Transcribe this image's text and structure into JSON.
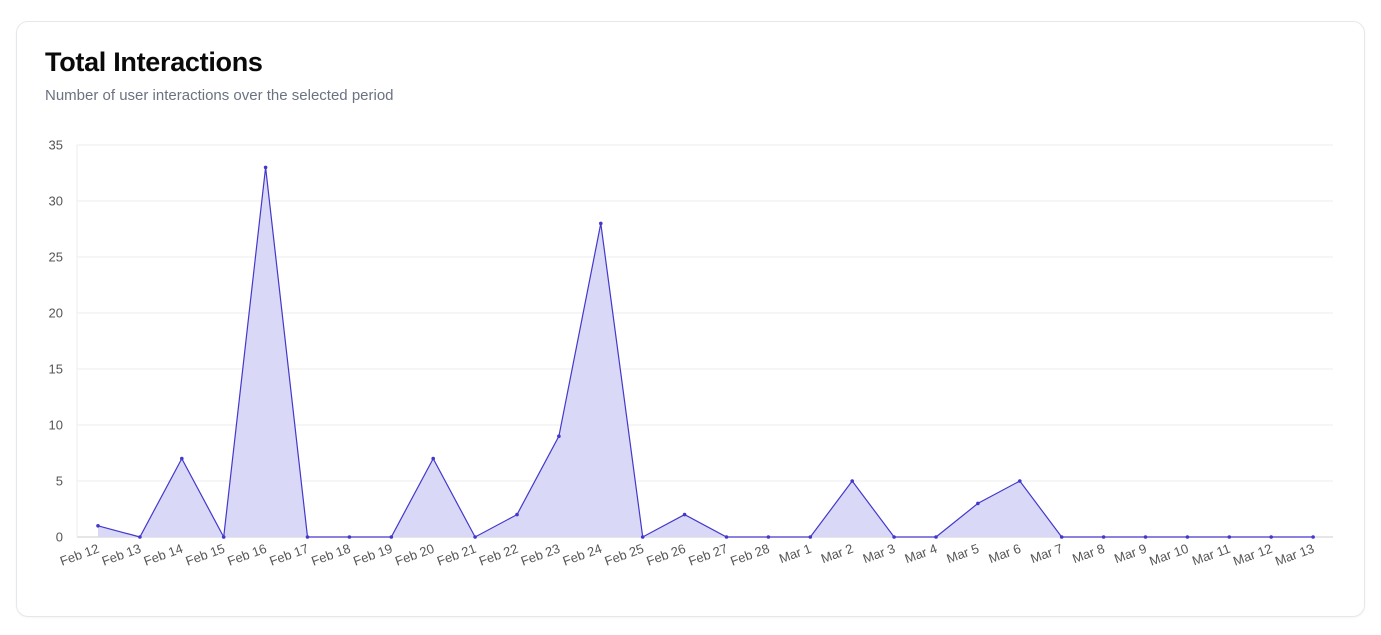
{
  "header": {
    "title": "Total Interactions",
    "subtitle": "Number of user interactions over the selected period"
  },
  "colors": {
    "line": "#4338ca",
    "fill": "#d8d6f7",
    "grid": "#ececec",
    "axis": "#cccccc"
  },
  "chart_data": {
    "type": "area",
    "title": "Total Interactions",
    "subtitle": "Number of user interactions over the selected period",
    "xlabel": "",
    "ylabel": "",
    "ylim": [
      0,
      35
    ],
    "yticks": [
      0,
      5,
      10,
      15,
      20,
      25,
      30,
      35
    ],
    "grid": true,
    "categories": [
      "Feb 12",
      "Feb 13",
      "Feb 14",
      "Feb 15",
      "Feb 16",
      "Feb 17",
      "Feb 18",
      "Feb 19",
      "Feb 20",
      "Feb 21",
      "Feb 22",
      "Feb 23",
      "Feb 24",
      "Feb 25",
      "Feb 26",
      "Feb 27",
      "Feb 28",
      "Mar 1",
      "Mar 2",
      "Mar 3",
      "Mar 4",
      "Mar 5",
      "Mar 6",
      "Mar 7",
      "Mar 8",
      "Mar 9",
      "Mar 10",
      "Mar 11",
      "Mar 12",
      "Mar 13"
    ],
    "series": [
      {
        "values": [
          1,
          0,
          7,
          0,
          33,
          0,
          0,
          0,
          7,
          0,
          2,
          9,
          28,
          0,
          2,
          0,
          0,
          0,
          5,
          0,
          0,
          3,
          5,
          0,
          0,
          0,
          0,
          0,
          0,
          0
        ]
      }
    ]
  }
}
